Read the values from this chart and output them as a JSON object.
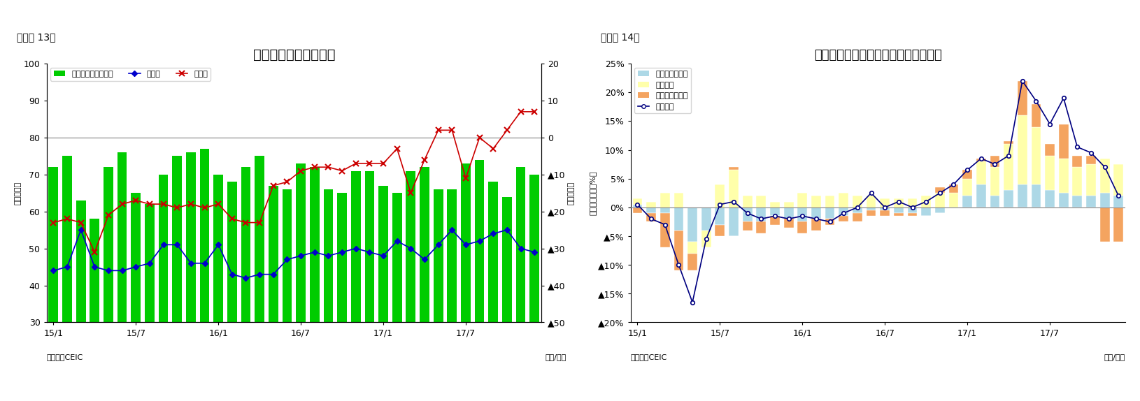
{
  "fig13": {
    "title": "フィリピンの貿易収支",
    "ylabel_left": "（億ドル）",
    "ylabel_right": "（億ドル）",
    "xlabel": "（年/月）",
    "source": "（資料）CEIC",
    "subtitle": "（図表 13）",
    "ylim_left": [
      30,
      100
    ],
    "ylim_right": [
      -50,
      20
    ],
    "yticks_left": [
      30,
      40,
      50,
      60,
      70,
      80,
      90,
      100
    ],
    "yticks_right": [
      20,
      10,
      0,
      -10,
      -20,
      -30,
      -40,
      -50
    ],
    "ytick_labels_right": [
      "20",
      "10",
      "0",
      "▲10",
      "▲20",
      "▲30",
      "▲40",
      "▲50"
    ],
    "xtick_labels": [
      "15/1",
      "15/7",
      "16/1",
      "16/7",
      "17/1",
      "17/7"
    ],
    "bar_color": "#00cc00",
    "line_export_color": "#0000cc",
    "line_import_color": "#cc0000",
    "legend_labels": [
      "貿易収支（右目盛）",
      "輸出額",
      "輸入額"
    ],
    "trade_balance": [
      -8,
      -5,
      -17,
      -22,
      -8,
      -4,
      -15,
      -18,
      -10,
      -5,
      -4,
      -3,
      -10,
      -12,
      -8,
      -5,
      -13,
      -14,
      -7,
      -8,
      -14,
      -15,
      -9,
      -9,
      -13,
      -15,
      -9,
      -8,
      -14,
      -14,
      -7,
      -6,
      -12,
      -16,
      -8,
      -10
    ],
    "exports": [
      44,
      45,
      55,
      45,
      44,
      44,
      45,
      46,
      51,
      51,
      46,
      46,
      51,
      43,
      42,
      43,
      43,
      47,
      48,
      49,
      48,
      49,
      50,
      49,
      48,
      52,
      50,
      47,
      51,
      55,
      51,
      52,
      54,
      55,
      50,
      49
    ],
    "imports": [
      57,
      58,
      57,
      49,
      59,
      62,
      63,
      62,
      62,
      61,
      62,
      61,
      62,
      58,
      57,
      57,
      67,
      68,
      71,
      72,
      72,
      71,
      73,
      73,
      73,
      77,
      65,
      74,
      82,
      82,
      69,
      80,
      77,
      82,
      87,
      87
    ],
    "bar_bottom": 80,
    "n_bars": 36
  },
  "fig14": {
    "title": "フィリピン　輸出の伸び率（品目別）",
    "ylabel_left": "（前年同期比、%）",
    "xlabel": "（年/月）",
    "source": "（資料）CEIC",
    "subtitle": "（図表 14）",
    "ylim": [
      -0.2,
      0.25
    ],
    "yticks": [
      0.25,
      0.2,
      0.15,
      0.1,
      0.05,
      0.0,
      -0.05,
      -0.1,
      -0.15,
      -0.2
    ],
    "ytick_labels": [
      "25%",
      "20%",
      "15%",
      "10%",
      "5%",
      "0%",
      "▲5%",
      "▲10%",
      "▲15%",
      "▲20%"
    ],
    "xtick_labels": [
      "15/1",
      "15/7",
      "16/1",
      "16/7",
      "17/1",
      "17/7"
    ],
    "color_primary": "#add8e6",
    "color_electronics": "#ffffaa",
    "color_other": "#f4a460",
    "line_color": "#000080",
    "legend_labels": [
      "一次産品・燃料",
      "電子製品",
      "その他製品など",
      "輸出合計"
    ],
    "primary": [
      0.005,
      -0.01,
      -0.01,
      -0.04,
      -0.06,
      -0.04,
      -0.03,
      -0.05,
      -0.025,
      -0.025,
      -0.015,
      -0.02,
      -0.025,
      -0.02,
      -0.02,
      -0.015,
      -0.01,
      -0.005,
      -0.005,
      -0.01,
      -0.01,
      -0.015,
      -0.01,
      0.0,
      0.02,
      0.04,
      0.02,
      0.03,
      0.04,
      0.04,
      0.03,
      0.025,
      0.02,
      0.02,
      0.025,
      0.02
    ],
    "electronics": [
      0.01,
      0.01,
      0.025,
      0.025,
      -0.02,
      -0.03,
      0.04,
      0.065,
      0.02,
      0.02,
      0.01,
      0.01,
      0.025,
      0.02,
      0.02,
      0.025,
      0.02,
      0.02,
      0.015,
      0.015,
      0.015,
      0.02,
      0.025,
      0.025,
      0.03,
      0.04,
      0.05,
      0.08,
      0.12,
      0.1,
      0.06,
      0.06,
      0.05,
      0.055,
      0.06,
      0.055
    ],
    "other": [
      -0.01,
      -0.015,
      -0.06,
      -0.07,
      -0.03,
      0.0,
      -0.02,
      0.005,
      -0.015,
      -0.02,
      -0.015,
      -0.015,
      -0.02,
      -0.02,
      -0.01,
      -0.01,
      -0.015,
      -0.01,
      -0.01,
      -0.005,
      -0.005,
      0.0,
      0.01,
      0.015,
      0.015,
      0.005,
      0.02,
      0.005,
      0.06,
      0.04,
      0.02,
      0.06,
      0.02,
      0.015,
      -0.06,
      -0.06
    ],
    "total": [
      0.005,
      -0.02,
      -0.03,
      -0.1,
      -0.165,
      -0.055,
      0.005,
      0.01,
      -0.01,
      -0.02,
      -0.015,
      -0.02,
      -0.015,
      -0.02,
      -0.025,
      -0.01,
      0.0,
      0.025,
      0.0,
      0.01,
      0.0,
      0.01,
      0.025,
      0.04,
      0.065,
      0.085,
      0.075,
      0.09,
      0.22,
      0.185,
      0.145,
      0.19,
      0.105,
      0.095,
      0.07,
      0.02
    ],
    "n_bars": 36
  }
}
